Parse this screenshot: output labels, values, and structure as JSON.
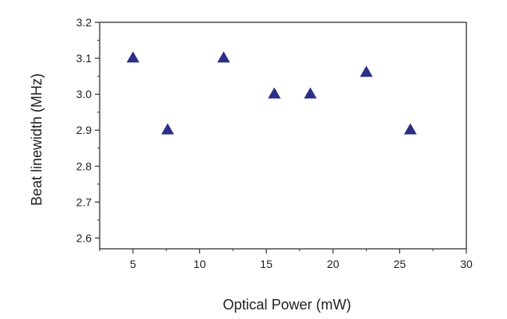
{
  "chart_data": {
    "type": "scatter",
    "title": "",
    "xlabel": "Optical Power (mW)",
    "ylabel": "Beat linewidth (MHz)",
    "xlim": [
      2.5,
      30
    ],
    "ylim": [
      2.57,
      3.2
    ],
    "x_ticks": [
      5,
      10,
      15,
      20,
      25,
      30
    ],
    "x_tick_labels": [
      "5",
      "10",
      "15",
      "20",
      "25",
      "30"
    ],
    "y_ticks": [
      2.6,
      2.7,
      2.8,
      2.9,
      3.0,
      3.1,
      3.2
    ],
    "y_tick_labels": [
      "2.6",
      "2.7",
      "2.8",
      "2.9",
      "3.0",
      "3.1",
      "3.2"
    ],
    "grid": false,
    "marker": "triangle",
    "marker_color": "#2b2f86",
    "series": [
      {
        "x": [
          5.0,
          7.6,
          11.8,
          15.6,
          18.3,
          22.5,
          25.8
        ],
        "y": [
          3.1,
          2.9,
          3.1,
          3.0,
          3.0,
          3.06,
          2.9
        ]
      }
    ]
  }
}
